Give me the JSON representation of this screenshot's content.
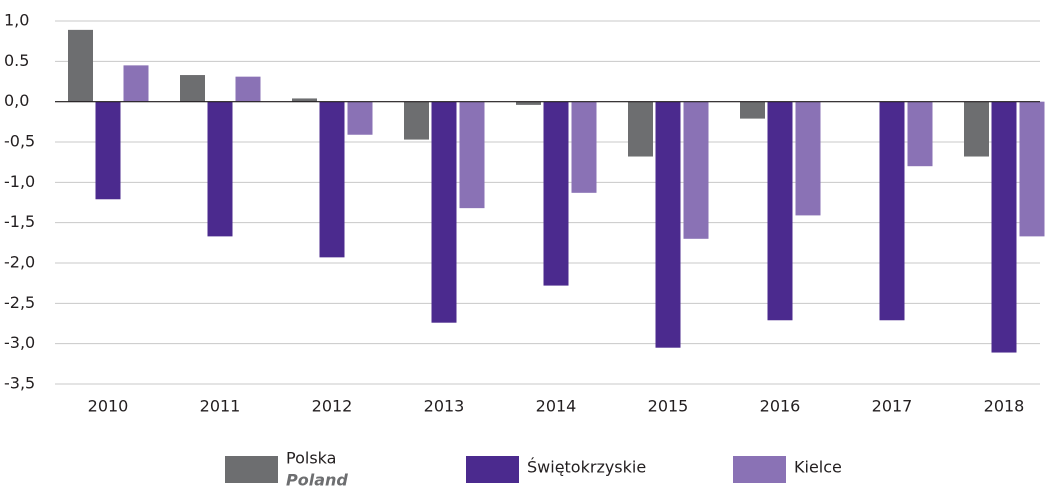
{
  "chart_data": {
    "type": "bar",
    "categories": [
      "2010",
      "2011",
      "2012",
      "2013",
      "2014",
      "2015",
      "2016",
      "2017",
      "2018"
    ],
    "series": [
      {
        "name": "Polska",
        "name_alt": "Poland",
        "color": "#6d6e70",
        "values": [
          0.89,
          0.33,
          0.04,
          -0.47,
          -0.04,
          -0.68,
          -0.21,
          0,
          -0.68
        ]
      },
      {
        "name": "Świętokrzyskie",
        "color": "#4b2a8e",
        "values": [
          -1.21,
          -1.67,
          -1.93,
          -2.74,
          -2.28,
          -3.05,
          -2.71,
          -2.71,
          -3.11
        ]
      },
      {
        "name": "Kielce",
        "color": "#8a72b5",
        "values": [
          0.45,
          0.31,
          -0.41,
          -1.32,
          -1.13,
          -1.7,
          -1.41,
          -0.8,
          -1.67
        ]
      }
    ],
    "ylim": [
      -3.5,
      1.0
    ],
    "yticks": [
      {
        "value": 1.0,
        "label": "1,0"
      },
      0.5,
      {
        "value": 0,
        "label": "0,0"
      },
      {
        "value": -0.5,
        "label": "-0,5"
      },
      {
        "value": -1.0,
        "label": "-1,0"
      },
      {
        "value": -1.5,
        "label": "-1,5"
      },
      {
        "value": -2.0,
        "label": "-2,0"
      },
      {
        "value": -2.5,
        "label": "-2,5"
      },
      {
        "value": -3.0,
        "label": "-3,0"
      },
      {
        "value": -3.5,
        "label": "-3,5"
      }
    ],
    "grid": true
  }
}
